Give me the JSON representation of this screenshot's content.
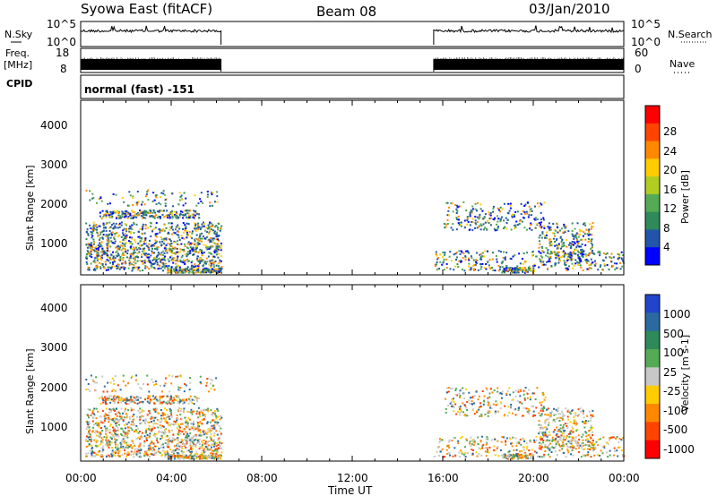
{
  "header": {
    "station": "Syowa East (fitACF)",
    "beam": "Beam 08",
    "date": "03/Jan/2010"
  },
  "left_labels": {
    "nsky": "N.Sky",
    "freq_line1": "Freq.",
    "freq_line2": "[MHz]",
    "cpid": "CPID"
  },
  "right_labels": {
    "nsearch": "N.Search",
    "nave": "Nave"
  },
  "cpid_text": "normal (fast) -151",
  "chart_data": [
    {
      "type": "line",
      "name": "noise-panel",
      "left_ticks": [
        "10^5",
        "10^0"
      ],
      "right_ticks": [
        "10^5",
        "10^0"
      ],
      "data_intervals_ut_hours": [
        [
          0.0,
          6.2
        ],
        [
          15.6,
          24.0
        ]
      ]
    },
    {
      "type": "bar",
      "name": "frequency-nave-panel",
      "left_ticks": [
        "18",
        "8"
      ],
      "right_ticks": [
        "60",
        "0"
      ],
      "data_intervals_ut_hours": [
        [
          0.0,
          6.2
        ],
        [
          15.6,
          24.0
        ]
      ]
    },
    {
      "type": "heatmap",
      "name": "power-panel",
      "ylabel": "Slant Range [km]",
      "yticks": [
        "4000",
        "3000",
        "2000",
        "1000"
      ],
      "ylim": [
        180,
        4500
      ],
      "colorbar_label": "Power [dB]",
      "colorbar_ticks": [
        "28",
        "24",
        "20",
        "16",
        "12",
        "8",
        "4"
      ],
      "colorbar_colors": [
        "#ff0000",
        "#ff4400",
        "#ff8800",
        "#ffcc00",
        "#b2cc22",
        "#55aa55",
        "#2f8a5a",
        "#2255aa",
        "#0000ff"
      ]
    },
    {
      "type": "heatmap",
      "name": "velocity-panel",
      "ylabel": "Slant Range [km]",
      "yticks": [
        "4000",
        "3000",
        "2000",
        "1000"
      ],
      "ylim": [
        180,
        4500
      ],
      "xlabel": "Time UT",
      "xticks": [
        "00:00",
        "04:00",
        "08:00",
        "12:00",
        "16:00",
        "20:00",
        "00:00"
      ],
      "xlim": [
        0,
        24
      ],
      "colorbar_label": "Velocity [m s-1]",
      "colorbar_ticks": [
        "1000",
        "500",
        "100",
        "25",
        "-25",
        "-100",
        "-500",
        "-1000"
      ],
      "colorbar_colors": [
        "#2244cc",
        "#2a6aa0",
        "#2f8a5a",
        "#55aa55",
        "#c8c8c8",
        "#ffcc00",
        "#ff8800",
        "#ff4400",
        "#ff0000"
      ]
    }
  ]
}
